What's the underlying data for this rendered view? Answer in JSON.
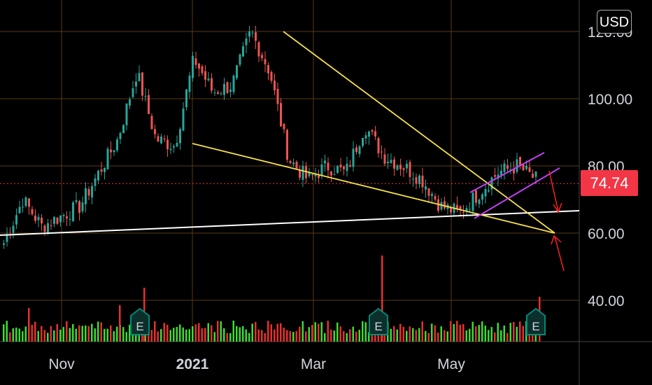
{
  "currency": "USD",
  "last_price": "74.74",
  "colors": {
    "up": "#26a69a",
    "down": "#ef5350",
    "vol_up": "#3cdc32",
    "vol_down": "#e8302c",
    "grid": "#5a3a1a",
    "trendline": "#f5e04a",
    "support": "#ffffff",
    "channel": "#c040f0",
    "arrow": "#ff2020",
    "price_line": "#f23645",
    "earnings": "#00897b"
  },
  "chart_data": {
    "type": "candlestick",
    "y_axis": {
      "ticks": [
        {
          "value": 120,
          "label": "120.00"
        },
        {
          "value": 100,
          "label": "100.00"
        },
        {
          "value": 80,
          "label": "80.00"
        },
        {
          "value": 60,
          "label": "60.00"
        },
        {
          "value": 40,
          "label": "40.00"
        }
      ],
      "range": [
        30,
        130
      ]
    },
    "x_axis": {
      "labels": [
        {
          "text": "Nov",
          "bold": false
        },
        {
          "text": "2021",
          "bold": true
        },
        {
          "text": "Mar",
          "bold": false
        },
        {
          "text": "May",
          "bold": false
        }
      ]
    },
    "earnings_markers": [
      "E",
      "E",
      "E"
    ],
    "current_price": 74.74,
    "key_closes": [
      57,
      70,
      62,
      65,
      68,
      78,
      88,
      108,
      88,
      86,
      112,
      102,
      104,
      120,
      108,
      82,
      76,
      80,
      78,
      92,
      83,
      80,
      76,
      68,
      66,
      72,
      78,
      80,
      76
    ]
  }
}
